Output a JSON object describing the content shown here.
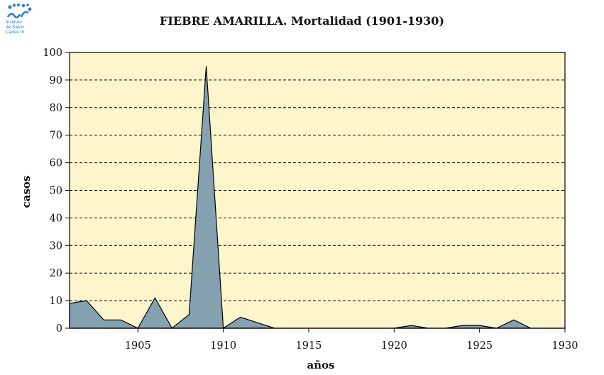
{
  "logo": {
    "name": "Instituto de Salud Carlos III",
    "lines": [
      "Instituto",
      "de Salud",
      "Carlos III"
    ]
  },
  "chart_data": {
    "type": "area",
    "title": "FIEBRE AMARILLA. Mortalidad (1901-1930)",
    "xlabel": "años",
    "ylabel": "casos",
    "xlim": [
      1901,
      1930
    ],
    "ylim": [
      0,
      100
    ],
    "xticks": [
      1905,
      1910,
      1915,
      1920,
      1925,
      1930
    ],
    "yticks": [
      0,
      10,
      20,
      30,
      40,
      50,
      60,
      70,
      80,
      90,
      100
    ],
    "grid": true,
    "colors": {
      "plot_bg": "#fdf6cc",
      "fill": "#84a2b0",
      "stroke": "#000000"
    },
    "x": [
      1901,
      1902,
      1903,
      1904,
      1905,
      1906,
      1907,
      1908,
      1909,
      1910,
      1911,
      1912,
      1913,
      1914,
      1915,
      1916,
      1917,
      1918,
      1919,
      1920,
      1921,
      1922,
      1923,
      1924,
      1925,
      1926,
      1927,
      1928,
      1929,
      1930
    ],
    "values": [
      9,
      10,
      3,
      3,
      0,
      11,
      0,
      5,
      95,
      0,
      4,
      2,
      0,
      0,
      0,
      0,
      0,
      0,
      0,
      0,
      1,
      0,
      0,
      1,
      1,
      0,
      3,
      0,
      0,
      0
    ]
  }
}
